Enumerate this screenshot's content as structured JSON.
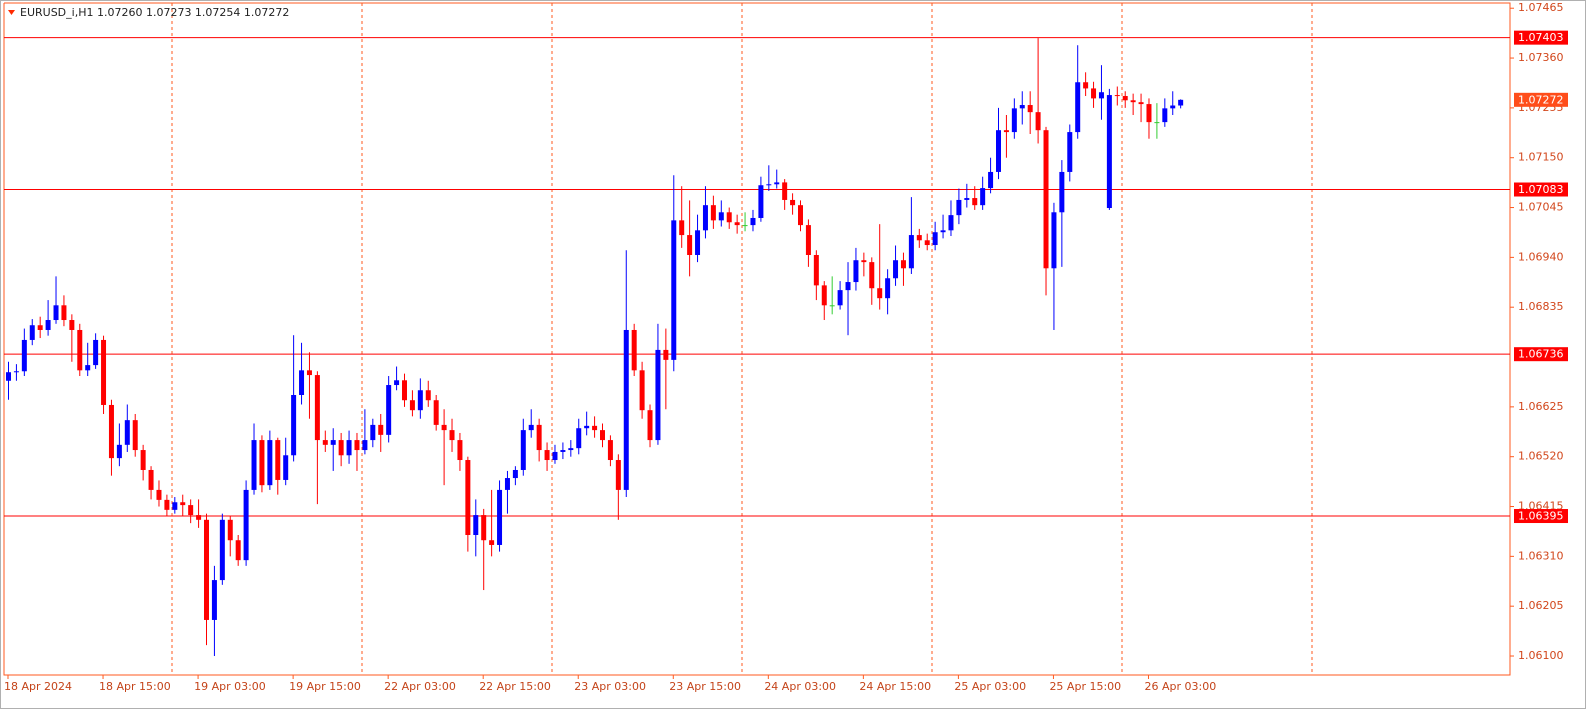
{
  "chart_data": {
    "type": "candlestick",
    "title": "EURUSD_i,H1  1.07260 1.07273 1.07254 1.07272",
    "up_color": "#0000ff",
    "down_color": "#ff0000",
    "doji_color": "#32cd32",
    "level_color": "#ff0000",
    "current_color": "#ff4d1a",
    "categories": [
      "18 Apr 2024",
      null,
      null,
      null,
      null,
      null,
      null,
      null,
      null,
      null,
      null,
      null,
      "18 Apr 15:00",
      null,
      null,
      null,
      null,
      null,
      null,
      null,
      null,
      null,
      null,
      null,
      "19 Apr 03:00",
      null,
      null,
      null,
      null,
      null,
      null,
      null,
      null,
      null,
      null,
      null,
      "19 Apr 15:00",
      null,
      null,
      null,
      null,
      null,
      null,
      null,
      null,
      null,
      null,
      null,
      "22 Apr 03:00",
      null,
      null,
      null,
      null,
      null,
      null,
      null,
      null,
      null,
      null,
      null,
      "22 Apr 15:00",
      null,
      null,
      null,
      null,
      null,
      null,
      null,
      null,
      null,
      null,
      null,
      "23 Apr 03:00",
      null,
      null,
      null,
      null,
      null,
      null,
      null,
      null,
      null,
      null,
      null,
      "23 Apr 15:00",
      null,
      null,
      null,
      null,
      null,
      null,
      null,
      null,
      null,
      null,
      null,
      "24 Apr 03:00",
      null,
      null,
      null,
      null,
      null,
      null,
      null,
      null,
      null,
      null,
      null,
      "24 Apr 15:00",
      null,
      null,
      null,
      null,
      null,
      null,
      null,
      null,
      null,
      null,
      null,
      "25 Apr 03:00",
      null,
      null,
      null,
      null,
      null,
      null,
      null,
      null,
      null,
      null,
      null,
      "25 Apr 15:00",
      null,
      null,
      null,
      null,
      null,
      null,
      null,
      null,
      null,
      null,
      null,
      "26 Apr 03:00",
      null,
      null,
      null,
      null
    ],
    "open": [
      1.0668,
      1.06698,
      1.067,
      1.06766,
      1.06797,
      1.06787,
      1.06808,
      1.06839,
      1.06808,
      1.06787,
      1.06702,
      1.06713,
      1.06766,
      1.06629,
      1.06517,
      1.06545,
      1.06597,
      1.06534,
      1.06492,
      1.0645,
      1.06429,
      1.06408,
      1.06424,
      1.06418,
      1.06397,
      1.06387,
      1.06176,
      1.0626,
      1.06387,
      1.06344,
      1.06302,
      1.0645,
      1.06555,
      1.0646,
      1.06555,
      1.06471,
      1.06523,
      1.0665,
      1.06702,
      1.06692,
      1.06555,
      1.06545,
      1.06555,
      1.06523,
      1.06555,
      1.06534,
      1.06555,
      1.06587,
      1.06566,
      1.06671,
      1.06681,
      1.06639,
      1.06618,
      1.0666,
      1.06639,
      1.06587,
      1.06576,
      1.06555,
      1.06513,
      1.06355,
      1.06397,
      1.06344,
      1.06334,
      1.0645,
      1.06475,
      1.06492,
      1.06576,
      1.06587,
      1.06534,
      1.06513,
      1.0653,
      1.06534,
      1.06538,
      1.0658,
      1.06585,
      1.06576,
      1.06555,
      1.06513,
      1.0645,
      1.06787,
      1.06702,
      1.06618,
      1.06555,
      1.06745,
      1.06724,
      1.07018,
      1.06987,
      1.06945,
      1.06997,
      1.0705,
      1.07018,
      1.07035,
      1.07014,
      1.07008,
      1.07008,
      1.07023,
      1.07092,
      1.07094,
      1.07098,
      1.07061,
      1.0705,
      1.07008,
      1.06945,
      1.06881,
      1.06839,
      1.06839,
      1.06871,
      1.06888,
      1.06934,
      1.0693,
      1.06875,
      1.06854,
      1.06896,
      1.06934,
      1.06917,
      1.06987,
      1.06976,
      1.06966,
      1.06993,
      1.06997,
      1.07029,
      1.07061,
      1.07065,
      1.0705,
      1.07086,
      1.0712,
      1.07208,
      1.07204,
      1.07254,
      1.07261,
      1.07246,
      1.07208,
      1.06917,
      1.07035,
      1.0712,
      1.07204,
      1.07309,
      1.07296,
      1.07275,
      1.07044,
      1.07282,
      1.0728,
      1.07271,
      1.07267,
      1.07263,
      1.07225,
      1.07225,
      1.07254,
      1.0726
    ],
    "high": [
      1.0672,
      1.06715,
      1.0679,
      1.0681,
      1.06815,
      1.0685,
      1.069,
      1.0686,
      1.0682,
      1.068,
      1.0676,
      1.0678,
      1.06775,
      1.0664,
      1.0659,
      1.0663,
      1.0661,
      1.06545,
      1.065,
      1.0647,
      1.0644,
      1.06435,
      1.0644,
      1.0643,
      1.0643,
      1.064,
      1.0629,
      1.064,
      1.06395,
      1.06355,
      1.0647,
      1.0659,
      1.06565,
      1.06575,
      1.0656,
      1.0656,
      1.06776,
      1.0676,
      1.0674,
      1.067,
      1.06575,
      1.0658,
      1.0657,
      1.06575,
      1.0657,
      1.0662,
      1.066,
      1.0661,
      1.0669,
      1.0671,
      1.06695,
      1.0666,
      1.06685,
      1.0668,
      1.0665,
      1.0662,
      1.066,
      1.0657,
      1.0652,
      1.0643,
      1.0641,
      1.0645,
      1.0647,
      1.0649,
      1.065,
      1.066,
      1.0662,
      1.066,
      1.0655,
      1.06545,
      1.0655,
      1.06555,
      1.066,
      1.06615,
      1.06605,
      1.0659,
      1.06565,
      1.06525,
      1.06955,
      1.068,
      1.0672,
      1.0663,
      1.068,
      1.0679,
      1.07113,
      1.0709,
      1.0706,
      1.0703,
      1.0709,
      1.0707,
      1.0706,
      1.07045,
      1.0703,
      1.07035,
      1.0704,
      1.0711,
      1.07134,
      1.07125,
      1.07105,
      1.07075,
      1.0706,
      1.0702,
      1.06955,
      1.0689,
      1.069,
      1.0689,
      1.0693,
      1.0696,
      1.0695,
      1.0694,
      1.0701,
      1.06915,
      1.06965,
      1.0695,
      1.07067,
      1.07,
      1.0699,
      1.07015,
      1.0703,
      1.0706,
      1.07085,
      1.07095,
      1.0709,
      1.0711,
      1.0715,
      1.07255,
      1.0724,
      1.07275,
      1.0729,
      1.0729,
      1.07402,
      1.07215,
      1.07055,
      1.07145,
      1.0722,
      1.07387,
      1.0733,
      1.0731,
      1.07345,
      1.07295,
      1.073,
      1.0729,
      1.07285,
      1.07285,
      1.07275,
      1.07265,
      1.07275,
      1.0729,
      1.07273
    ],
    "low": [
      1.0664,
      1.0668,
      1.0669,
      1.06755,
      1.0677,
      1.06775,
      1.068,
      1.06795,
      1.0672,
      1.0669,
      1.0669,
      1.06705,
      1.0661,
      1.0648,
      1.065,
      1.0653,
      1.0652,
      1.0647,
      1.0643,
      1.06415,
      1.06395,
      1.064,
      1.06395,
      1.0638,
      1.0637,
      1.06123,
      1.061,
      1.0625,
      1.0631,
      1.0629,
      1.0629,
      1.0644,
      1.06445,
      1.0645,
      1.0644,
      1.0646,
      1.0651,
      1.0663,
      1.066,
      1.0642,
      1.0653,
      1.0649,
      1.065,
      1.06505,
      1.0649,
      1.06525,
      1.0654,
      1.0653,
      1.0655,
      1.0666,
      1.06625,
      1.06605,
      1.066,
      1.06625,
      1.06575,
      1.0646,
      1.0653,
      1.0649,
      1.0632,
      1.0631,
      1.06239,
      1.0631,
      1.0632,
      1.064,
      1.0646,
      1.0648,
      1.0656,
      1.0651,
      1.0649,
      1.06505,
      1.06515,
      1.0652,
      1.06525,
      1.06565,
      1.0656,
      1.0654,
      1.065,
      1.06387,
      1.06435,
      1.0669,
      1.066,
      1.0654,
      1.06545,
      1.0662,
      1.067,
      1.0696,
      1.069,
      1.0693,
      1.0698,
      1.07,
      1.07005,
      1.07,
      1.0699,
      1.06995,
      1.06995,
      1.07015,
      1.0708,
      1.07085,
      1.0704,
      1.0703,
      1.06995,
      1.0692,
      1.0685,
      1.06808,
      1.0682,
      1.0683,
      1.06776,
      1.0687,
      1.069,
      1.0684,
      1.0683,
      1.0682,
      1.0688,
      1.0688,
      1.06905,
      1.0696,
      1.06955,
      1.06955,
      1.0698,
      1.06985,
      1.0701,
      1.07045,
      1.0704,
      1.0704,
      1.07075,
      1.07105,
      1.0715,
      1.0719,
      1.0722,
      1.072,
      1.0718,
      1.0686,
      1.06787,
      1.0692,
      1.071,
      1.0719,
      1.0728,
      1.07255,
      1.0723,
      1.0704,
      1.0726,
      1.07255,
      1.0724,
      1.07225,
      1.0719,
      1.0719,
      1.07215,
      1.0724,
      1.07254
    ],
    "close": [
      1.06698,
      1.067,
      1.06766,
      1.06797,
      1.06787,
      1.06808,
      1.06839,
      1.06808,
      1.06787,
      1.06702,
      1.06713,
      1.06766,
      1.06629,
      1.06517,
      1.06545,
      1.06597,
      1.06534,
      1.06492,
      1.0645,
      1.06429,
      1.06408,
      1.06424,
      1.06418,
      1.06397,
      1.06387,
      1.06176,
      1.0626,
      1.06387,
      1.06344,
      1.06302,
      1.0645,
      1.06555,
      1.0646,
      1.06555,
      1.06471,
      1.06523,
      1.0665,
      1.06702,
      1.06692,
      1.06555,
      1.06545,
      1.06555,
      1.06523,
      1.06555,
      1.06534,
      1.06555,
      1.06587,
      1.06566,
      1.06671,
      1.06681,
      1.06639,
      1.06618,
      1.0666,
      1.06639,
      1.06587,
      1.06576,
      1.06555,
      1.06513,
      1.06355,
      1.06397,
      1.06344,
      1.06334,
      1.0645,
      1.06475,
      1.06492,
      1.06576,
      1.06587,
      1.06534,
      1.06513,
      1.0653,
      1.06534,
      1.06538,
      1.0658,
      1.06585,
      1.06576,
      1.06555,
      1.06513,
      1.0645,
      1.06787,
      1.06702,
      1.06618,
      1.06555,
      1.06745,
      1.06724,
      1.07018,
      1.06987,
      1.06945,
      1.06997,
      1.0705,
      1.07018,
      1.07035,
      1.07014,
      1.07008,
      1.07008,
      1.07023,
      1.07092,
      1.07094,
      1.07098,
      1.07061,
      1.0705,
      1.07008,
      1.06945,
      1.06881,
      1.06839,
      1.06839,
      1.06871,
      1.06888,
      1.06934,
      1.0693,
      1.06875,
      1.06854,
      1.06896,
      1.06934,
      1.06917,
      1.06987,
      1.06976,
      1.06966,
      1.06993,
      1.06997,
      1.07029,
      1.07061,
      1.07065,
      1.0705,
      1.07086,
      1.0712,
      1.07208,
      1.07204,
      1.07254,
      1.07261,
      1.07246,
      1.07208,
      1.06917,
      1.07035,
      1.0712,
      1.07204,
      1.07309,
      1.07296,
      1.07275,
      1.07288,
      1.07282,
      1.0728,
      1.07271,
      1.07267,
      1.07263,
      1.07225,
      1.07225,
      1.07254,
      1.0726,
      1.07272
    ],
    "ylim": [
      1.0606,
      1.07476
    ],
    "yticks": [
      1.07465,
      {
        "value": 1.0736,
        "label": "1.07360"
      },
      1.07255,
      {
        "value": 1.0715,
        "label": "1.07150"
      },
      1.07045,
      {
        "value": 1.0694,
        "label": "1.06940"
      },
      1.06835,
      1.06625,
      {
        "value": 1.0652,
        "label": "1.06520"
      },
      1.06415,
      {
        "value": 1.0631,
        "label": "1.06310"
      },
      1.06205,
      {
        "value": 1.061,
        "label": "1.06100"
      }
    ],
    "levels": [
      1.07403,
      1.07083,
      1.06736,
      1.06395
    ],
    "current_price": 1.07272
  }
}
